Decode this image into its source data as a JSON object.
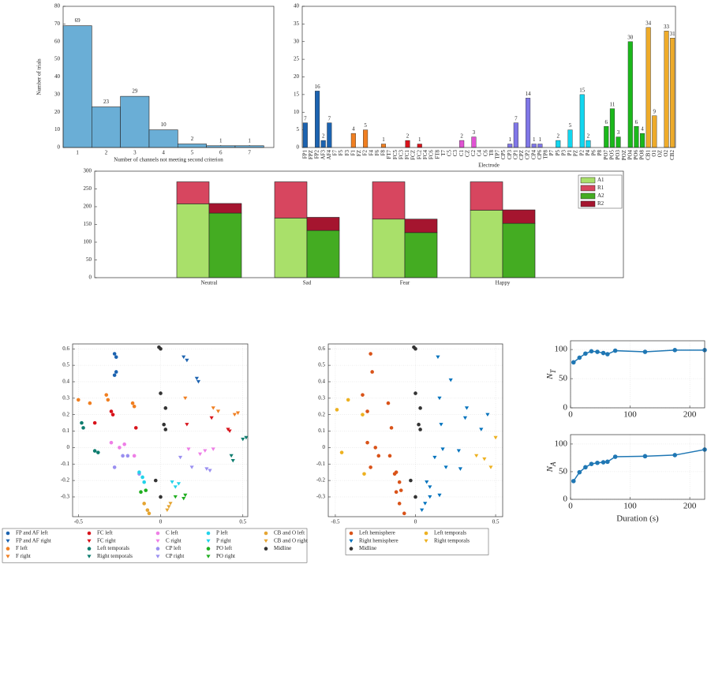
{
  "chart_data": [
    {
      "type": "histogram",
      "xlabel": "Number of channels not meeting second criterion",
      "ylabel": "Number of trials",
      "bins": [
        0.5,
        1.5,
        2.5,
        3.5,
        4.5,
        5.5,
        6.5,
        7.5
      ],
      "counts": [
        69,
        23,
        29,
        10,
        2,
        1,
        1
      ],
      "color": "#6aaed6",
      "xlim": [
        0.5,
        7.85
      ],
      "xticks": [
        1,
        2,
        3,
        4,
        5,
        6,
        7
      ],
      "ylim": [
        0,
        80
      ],
      "yticks": [
        0,
        10,
        20,
        30,
        40,
        50,
        60,
        70,
        80
      ]
    },
    {
      "type": "bar",
      "xlabel": "Electrode",
      "categories": [
        "FP1",
        "FPZ",
        "FP2",
        "AF3",
        "AF4",
        "F7",
        "F5",
        "F3",
        "F1",
        "FZ",
        "F2",
        "F4",
        "F6",
        "F8",
        "FT7",
        "FC5",
        "FC3",
        "FC1",
        "FCZ",
        "FC2",
        "FC4",
        "FC6",
        "FT8",
        "T7",
        "C5",
        "C3",
        "C1",
        "CZ",
        "C2",
        "C4",
        "C6",
        "T8",
        "TP7",
        "CP5",
        "CP3",
        "CP1",
        "CPZ",
        "CP2",
        "CP4",
        "CP6",
        "TP8",
        "P7",
        "P5",
        "P3",
        "P1",
        "PZ",
        "P2",
        "P4",
        "P6",
        "P8",
        "PO7",
        "PO5",
        "PO3",
        "POZ",
        "PO4",
        "PO6",
        "PO8",
        "CB1",
        "O1",
        "OZ",
        "O2",
        "CB2"
      ],
      "values": [
        7,
        0,
        16,
        2,
        7,
        0,
        0,
        0,
        4,
        0,
        5,
        0,
        0,
        1,
        0,
        0,
        0,
        2,
        0,
        1,
        0,
        0,
        0,
        0,
        0,
        0,
        2,
        0,
        3,
        0,
        0,
        0,
        0,
        0,
        1,
        7,
        0,
        14,
        1,
        1,
        0,
        0,
        2,
        0,
        5,
        0,
        15,
        2,
        0,
        0,
        6,
        11,
        3,
        0,
        30,
        6,
        4,
        34,
        9,
        0,
        33,
        31
      ],
      "colors": [
        "#1c63b0",
        "#1c63b0",
        "#1c63b0",
        "#1c63b0",
        "#1c63b0",
        "#f07f21",
        "#f07f21",
        "#f07f21",
        "#f07f21",
        "#f07f21",
        "#f07f21",
        "#f07f21",
        "#f07f21",
        "#f07f21",
        "#d8131b",
        "#d8131b",
        "#d8131b",
        "#d8131b",
        "#d8131b",
        "#d8131b",
        "#d8131b",
        "#d8131b",
        "#d8131b",
        "#e052d3",
        "#e052d3",
        "#e052d3",
        "#e052d3",
        "#e052d3",
        "#e052d3",
        "#e052d3",
        "#e052d3",
        "#e052d3",
        "#8077e8",
        "#8077e8",
        "#8077e8",
        "#8077e8",
        "#8077e8",
        "#8077e8",
        "#8077e8",
        "#8077e8",
        "#8077e8",
        "#11d6ef",
        "#11d6ef",
        "#11d6ef",
        "#11d6ef",
        "#11d6ef",
        "#11d6ef",
        "#11d6ef",
        "#11d6ef",
        "#11d6ef",
        "#1bb81b",
        "#1bb81b",
        "#1bb81b",
        "#1bb81b",
        "#1bb81b",
        "#1bb81b",
        "#1bb81b",
        "#eeab2a",
        "#eeab2a",
        "#eeab2a",
        "#eeab2a",
        "#eeab2a"
      ],
      "ylim": [
        0,
        40
      ],
      "yticks": [
        0,
        5,
        10,
        15,
        20,
        25,
        30,
        35,
        40
      ]
    },
    {
      "type": "stacked_bar",
      "categories": [
        "Neutral",
        "Sad",
        "Fear",
        "Happy"
      ],
      "series": [
        {
          "name": "A1",
          "color": "#a9e06a",
          "stack": 0,
          "values": [
            208,
            168,
            165,
            190
          ]
        },
        {
          "name": "R1",
          "color": "#d7465f",
          "stack": 0,
          "values": [
            62,
            102,
            105,
            80
          ]
        },
        {
          "name": "A2",
          "color": "#44ac22",
          "stack": 1,
          "values": [
            182,
            133,
            127,
            153
          ]
        },
        {
          "name": "R2",
          "color": "#a5152f",
          "stack": 1,
          "values": [
            27,
            37,
            38,
            38
          ]
        }
      ],
      "ylim": [
        0,
        300
      ],
      "yticks": [
        0,
        50,
        100,
        150,
        200,
        250,
        300
      ],
      "legend": "upper right"
    },
    {
      "type": "scatter",
      "grid": true,
      "legend_columns": 5,
      "xlim": [
        -0.535,
        0.53
      ],
      "xticks": [
        -0.5,
        0,
        0.5
      ],
      "ylim": [
        -0.42,
        0.63
      ],
      "yticks": [
        -0.3,
        -0.2,
        -0.1,
        0,
        0.1,
        0.2,
        0.3,
        0.4,
        0.5,
        0.6
      ],
      "series": [
        {
          "name": "FP and AF left",
          "color": "#1c63b0",
          "marker": "circle",
          "x": [
            -0.28,
            -0.27,
            -0.27,
            -0.28
          ],
          "y": [
            0.57,
            0.55,
            0.46,
            0.44
          ]
        },
        {
          "name": "FP and AF right",
          "color": "#1c63b0",
          "marker": "triangle",
          "x": [
            0.14,
            0.16,
            0.22,
            0.23
          ],
          "y": [
            0.55,
            0.53,
            0.42,
            0.4
          ]
        },
        {
          "name": "F left",
          "color": "#f07f21",
          "marker": "circle",
          "x": [
            -0.5,
            -0.43,
            -0.33,
            -0.32,
            -0.17,
            -0.16
          ],
          "y": [
            0.29,
            0.27,
            0.32,
            0.29,
            0.27,
            0.25
          ]
        },
        {
          "name": "F right",
          "color": "#f07f21",
          "marker": "triangle",
          "x": [
            0.15,
            0.32,
            0.35,
            0.47,
            0.45
          ],
          "y": [
            0.3,
            0.24,
            0.22,
            0.21,
            0.2
          ]
        },
        {
          "name": "FC left",
          "color": "#d8131b",
          "marker": "circle",
          "x": [
            -0.4,
            -0.3,
            -0.29,
            -0.15
          ],
          "y": [
            0.15,
            0.22,
            0.2,
            0.12
          ]
        },
        {
          "name": "FC right",
          "color": "#d8131b",
          "marker": "triangle",
          "x": [
            0.16,
            0.31,
            0.41,
            0.42
          ],
          "y": [
            0.14,
            0.18,
            0.11,
            0.1
          ]
        },
        {
          "name": "Left temporals",
          "color": "#0e7d6f",
          "marker": "circle",
          "x": [
            -0.48,
            -0.47,
            -0.4,
            -0.38
          ],
          "y": [
            0.15,
            0.12,
            -0.02,
            -0.03
          ]
        },
        {
          "name": "Right temporals",
          "color": "#0e7d6f",
          "marker": "triangle",
          "x": [
            0.43,
            0.44,
            0.52,
            0.5
          ],
          "y": [
            -0.05,
            -0.08,
            0.06,
            0.05
          ]
        },
        {
          "name": "C left",
          "color": "#ee7fe6",
          "marker": "circle",
          "x": [
            -0.3,
            -0.25,
            -0.22,
            -0.16
          ],
          "y": [
            0.03,
            0,
            0.02,
            -0.05
          ]
        },
        {
          "name": "C right",
          "color": "#ee7fe6",
          "marker": "triangle",
          "x": [
            0.17,
            0.27,
            0.32,
            0.24
          ],
          "y": [
            -0.01,
            -0.02,
            -0.01,
            -0.04
          ]
        },
        {
          "name": "CP left",
          "color": "#9a8ff0",
          "marker": "circle",
          "x": [
            -0.28,
            -0.23,
            -0.2,
            -0.13
          ],
          "y": [
            -0.12,
            -0.05,
            -0.05,
            -0.16
          ]
        },
        {
          "name": "CP right",
          "color": "#9a8ff0",
          "marker": "triangle",
          "x": [
            0.12,
            0.19,
            0.28,
            0.3
          ],
          "y": [
            -0.06,
            -0.12,
            -0.13,
            -0.14
          ]
        },
        {
          "name": "P left",
          "color": "#22d3ea",
          "marker": "circle",
          "x": [
            -0.13,
            -0.11,
            -0.1
          ],
          "y": [
            -0.15,
            -0.18,
            -0.21
          ]
        },
        {
          "name": "P right",
          "color": "#22d3ea",
          "marker": "triangle",
          "x": [
            0.07,
            0.09,
            0.11
          ],
          "y": [
            -0.21,
            -0.24,
            -0.22
          ]
        },
        {
          "name": "PO left",
          "color": "#1fae1f",
          "marker": "circle",
          "x": [
            -0.12,
            -0.09
          ],
          "y": [
            -0.27,
            -0.26
          ]
        },
        {
          "name": "PO right",
          "color": "#1fae1f",
          "marker": "triangle",
          "x": [
            0.09,
            0.15,
            0.14
          ],
          "y": [
            -0.3,
            -0.29,
            -0.31
          ]
        },
        {
          "name": "CB and O left",
          "color": "#e5a532",
          "marker": "circle",
          "x": [
            -0.1,
            -0.07,
            -0.08
          ],
          "y": [
            -0.34,
            -0.4,
            -0.38
          ]
        },
        {
          "name": "CB and O right",
          "color": "#e5a532",
          "marker": "triangle",
          "x": [
            0.04,
            0.06,
            0.05
          ],
          "y": [
            -0.38,
            -0.34,
            -0.36
          ]
        },
        {
          "name": "Midline",
          "color": "#333333",
          "marker": "circle",
          "x": [
            -0.01,
            0,
            0,
            0.03,
            0.02,
            0.03,
            -0.03,
            0
          ],
          "y": [
            0.61,
            0.6,
            0.33,
            0.24,
            0.14,
            0.11,
            -0.2,
            -0.3
          ]
        }
      ]
    },
    {
      "type": "scatter",
      "grid": true,
      "legend_columns": 2,
      "xlim": [
        -0.544,
        0.544
      ],
      "xticks": [
        -0.5,
        0,
        0.5
      ],
      "ylim": [
        -0.42,
        0.63
      ],
      "yticks": [
        -0.3,
        -0.2,
        -0.1,
        0,
        0.1,
        0.2,
        0.3,
        0.4,
        0.5,
        0.6
      ],
      "series": [
        {
          "name": "Left hemisphere",
          "color": "#d95319",
          "marker": "circle",
          "x": [
            -0.28,
            -0.27,
            -0.33,
            -0.17,
            -0.3,
            -0.15,
            -0.3,
            -0.25,
            -0.16,
            -0.28,
            -0.23,
            -0.13,
            -0.12,
            -0.1,
            -0.12,
            -0.09,
            -0.1,
            -0.07
          ],
          "y": [
            0.57,
            0.46,
            0.32,
            0.27,
            0.22,
            0.12,
            0.03,
            0,
            -0.05,
            -0.12,
            -0.05,
            -0.16,
            -0.15,
            -0.21,
            -0.27,
            -0.26,
            -0.34,
            -0.4
          ]
        },
        {
          "name": "Right hemisphere",
          "color": "#0072bd",
          "marker": "triangle",
          "x": [
            0.14,
            0.22,
            0.15,
            0.32,
            0.45,
            0.16,
            0.31,
            0.41,
            0.17,
            0.27,
            0.12,
            0.19,
            0.28,
            0.07,
            0.09,
            0.09,
            0.15,
            0.04,
            0.06
          ],
          "y": [
            0.55,
            0.41,
            0.3,
            0.24,
            0.2,
            0.14,
            0.18,
            0.11,
            -0.01,
            -0.02,
            -0.06,
            -0.12,
            -0.13,
            -0.21,
            -0.24,
            -0.3,
            -0.29,
            -0.38,
            -0.34
          ]
        },
        {
          "name": "Midline",
          "color": "#333333",
          "marker": "circle",
          "x": [
            -0.01,
            0,
            0,
            0.03,
            0.02,
            0.03,
            -0.03,
            0
          ],
          "y": [
            0.61,
            0.6,
            0.33,
            0.24,
            0.14,
            0.11,
            -0.2,
            -0.3
          ]
        },
        {
          "name": "Left temporals",
          "color": "#edb120",
          "marker": "circle",
          "x": [
            -0.49,
            -0.42,
            -0.33,
            -0.46,
            -0.32
          ],
          "y": [
            0.23,
            0.29,
            0.2,
            -0.03,
            -0.16
          ]
        },
        {
          "name": "Right temporals",
          "color": "#edb120",
          "marker": "triangle",
          "x": [
            0.5,
            0.43,
            0.38,
            0.47
          ],
          "y": [
            0.06,
            -0.07,
            -0.05,
            -0.12
          ]
        }
      ]
    },
    {
      "type": "line",
      "ylabel": "N",
      "ylabel_subscript": "T",
      "grid": true,
      "color": "#1f77b4",
      "x": [
        5,
        15,
        25,
        35,
        45,
        55,
        62,
        75,
        125,
        175,
        225
      ],
      "values": [
        78,
        86,
        93,
        97,
        96,
        94,
        92,
        98,
        96,
        99,
        99
      ],
      "xlim": [
        0,
        225
      ],
      "xticks": [
        0,
        100,
        200
      ],
      "ylim": [
        0,
        115
      ],
      "yticks": [
        0,
        50,
        100
      ]
    },
    {
      "type": "line",
      "ylabel": "N",
      "ylabel_subscript": "A",
      "xlabel": "Duration (s)",
      "grid": true,
      "color": "#1f77b4",
      "x": [
        5,
        15,
        25,
        35,
        45,
        55,
        62,
        75,
        125,
        175,
        225
      ],
      "values": [
        33,
        49,
        58,
        64,
        66,
        67,
        68,
        77,
        78,
        80,
        90
      ],
      "xlim": [
        0,
        225
      ],
      "xticks": [
        0,
        100,
        200
      ],
      "ylim": [
        0,
        117
      ],
      "yticks": [
        0,
        50,
        100
      ]
    }
  ]
}
